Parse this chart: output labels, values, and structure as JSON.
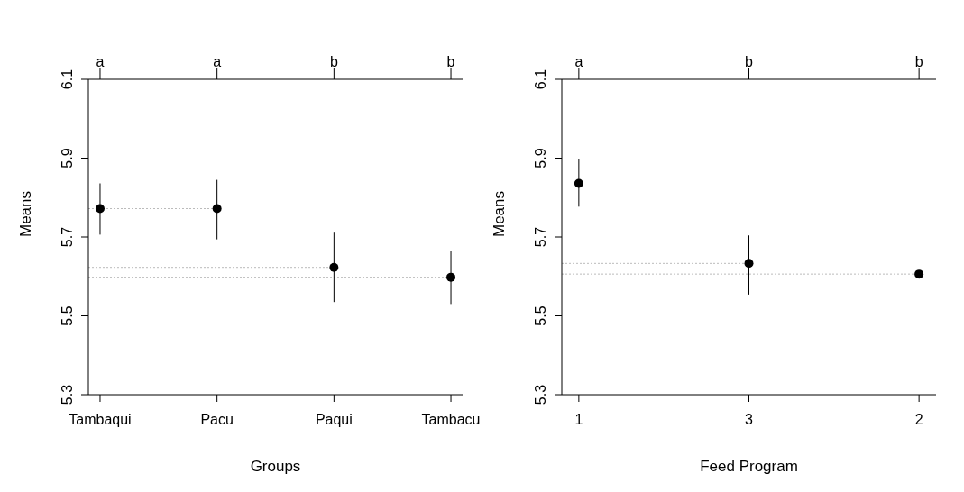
{
  "chart_data": [
    {
      "type": "scatter",
      "xlabel": "Groups",
      "ylabel": "Means",
      "categories": [
        "Tambaqui",
        "Pacu",
        "Paqui",
        "Tambacu"
      ],
      "values": [
        5.772,
        5.772,
        5.623,
        5.598
      ],
      "errors": [
        [
          5.706,
          5.836
        ],
        [
          5.694,
          5.845
        ],
        [
          5.535,
          5.711
        ],
        [
          5.53,
          5.664
        ]
      ],
      "color": "#000000",
      "marker": "circle",
      "ylim": [
        5.3,
        6.1
      ],
      "yticks": [
        5.3,
        5.5,
        5.7,
        5.9,
        6.1
      ],
      "grid": false,
      "legend": false,
      "annotations": [
        "a",
        "a",
        "b",
        "b"
      ],
      "ref_lines": [
        {
          "axis": "y",
          "value": 5.772,
          "color": "#bbbbbb",
          "line_style": "dotted"
        },
        {
          "axis": "y",
          "value": 5.623,
          "color": "#bbbbbb",
          "line_style": "dotted"
        },
        {
          "axis": "y",
          "value": 5.598,
          "color": "#bbbbbb",
          "line_style": "dotted"
        }
      ]
    },
    {
      "type": "scatter",
      "xlabel": "Feed Program",
      "ylabel": "Means",
      "categories": [
        "1",
        "3",
        "2"
      ],
      "values": [
        5.836,
        5.633,
        5.606
      ],
      "errors": [
        [
          5.777,
          5.897
        ],
        [
          5.554,
          5.704
        ],
        null
      ],
      "color": "#000000",
      "marker": "circle",
      "ylim": [
        5.3,
        6.1
      ],
      "yticks": [
        5.3,
        5.5,
        5.7,
        5.9,
        6.1
      ],
      "grid": false,
      "legend": false,
      "annotations": [
        "a",
        "b",
        "b"
      ],
      "ref_lines": [
        {
          "axis": "y",
          "value": 5.633,
          "color": "#bbbbbb",
          "line_style": "dotted"
        },
        {
          "axis": "y",
          "value": 5.606,
          "color": "#bbbbbb",
          "line_style": "dotted"
        }
      ]
    }
  ]
}
